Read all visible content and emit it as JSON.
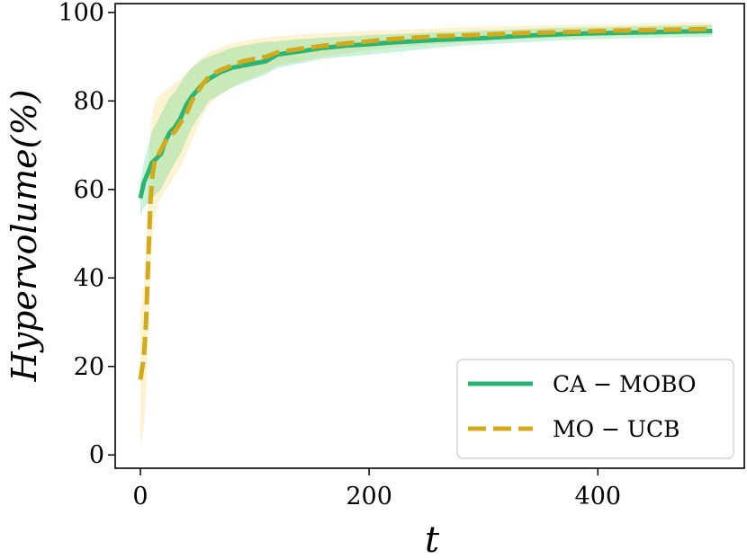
{
  "chart_data": {
    "type": "line",
    "title": "",
    "xlabel": "t",
    "ylabel": "Hypervolume(%)",
    "xlim": [
      -22,
      528
    ],
    "ylim": [
      -3,
      102
    ],
    "xticks": [
      0,
      200,
      400
    ],
    "yticks": [
      0,
      20,
      40,
      60,
      80,
      100
    ],
    "grid": false,
    "legend_position": "lower-right",
    "colors": {
      "ca_mobo": "#2bb573",
      "mo_ucb": "#d4aa1a",
      "ca_mobo_band": "#2ecc71",
      "mo_ucb_band": "#f5d66b"
    },
    "series": [
      {
        "name": "CA − MOBO",
        "style": "solid",
        "x": [
          0,
          3,
          7,
          10,
          14,
          18,
          22,
          26,
          30,
          35,
          40,
          45,
          50,
          55,
          60,
          70,
          80,
          90,
          100,
          110,
          120,
          140,
          160,
          180,
          200,
          220,
          240,
          260,
          280,
          300,
          320,
          340,
          360,
          380,
          400,
          420,
          440,
          460,
          480,
          500
        ],
        "values": [
          58,
          61.5,
          64,
          66,
          67,
          68,
          71,
          73,
          74,
          76,
          79,
          81,
          82.5,
          84,
          85,
          86.5,
          87.5,
          88,
          88.5,
          89,
          90.5,
          91.2,
          92,
          92.5,
          92.8,
          93.2,
          93.5,
          93.8,
          94,
          94.2,
          94.5,
          94.8,
          95,
          95.2,
          95.3,
          95.4,
          95.5,
          95.6,
          95.7,
          95.8
        ],
        "lower": [
          54,
          56,
          57,
          58,
          59,
          60,
          62,
          64,
          66,
          68,
          71,
          74,
          76,
          78,
          80,
          81.5,
          83,
          84,
          85,
          86,
          87.5,
          88.5,
          89.5,
          90,
          90.5,
          91,
          91.5,
          92,
          92.5,
          92.8,
          93,
          93.3,
          93.6,
          93.8,
          94,
          94.1,
          94.2,
          94.3,
          94.4,
          94.5
        ],
        "upper": [
          62,
          66,
          70,
          73,
          75,
          77,
          79,
          81,
          82,
          84,
          86,
          87.5,
          88.5,
          89.5,
          90,
          91,
          92,
          92.5,
          93,
          93.3,
          93.5,
          94,
          94.3,
          94.6,
          94.9,
          95.1,
          95.3,
          95.5,
          95.7,
          95.9,
          96.1,
          96.3,
          96.5,
          96.6,
          96.7,
          96.8,
          96.9,
          97,
          97.1,
          97.2
        ]
      },
      {
        "name": "MO − UCB",
        "style": "dashed",
        "x": [
          0,
          3,
          5,
          7,
          9,
          11,
          13,
          16,
          20,
          25,
          30,
          35,
          40,
          45,
          50,
          55,
          60,
          70,
          80,
          90,
          100,
          110,
          120,
          140,
          160,
          180,
          200,
          220,
          240,
          260,
          280,
          300,
          320,
          340,
          360,
          380,
          400,
          420,
          440,
          460,
          480,
          500
        ],
        "values": [
          17,
          22,
          30,
          45,
          58,
          64,
          67,
          68,
          70,
          72,
          73,
          75,
          77,
          80,
          82,
          84,
          85.5,
          87,
          88,
          89,
          89.5,
          90,
          91,
          91.8,
          92.5,
          93,
          93.5,
          94,
          94.3,
          94.6,
          94.8,
          95,
          95.2,
          95.4,
          95.5,
          95.6,
          95.8,
          95.9,
          96,
          96.1,
          96.2,
          96.3
        ],
        "lower": [
          2,
          6,
          14,
          28,
          42,
          50,
          54,
          57,
          59,
          61,
          63,
          65,
          68,
          71,
          74,
          77,
          79,
          81.5,
          83,
          84.5,
          85.5,
          86.5,
          88,
          89,
          90,
          90.8,
          91.5,
          92,
          92.5,
          92.8,
          93.2,
          93.5,
          93.8,
          94,
          94.2,
          94.4,
          94.6,
          94.7,
          94.8,
          94.9,
          95,
          95.1
        ],
        "upper": [
          32,
          38,
          46,
          62,
          74,
          78,
          80,
          81,
          82,
          83,
          84,
          85,
          86,
          87.5,
          89,
          90,
          91,
          92,
          93,
          93.5,
          94,
          94.3,
          94.6,
          95,
          95.3,
          95.6,
          95.8,
          96,
          96.2,
          96.4,
          96.6,
          96.8,
          96.9,
          97,
          97.1,
          97.2,
          97.3,
          97.4,
          97.5,
          97.6,
          97.7,
          97.8
        ]
      }
    ]
  }
}
